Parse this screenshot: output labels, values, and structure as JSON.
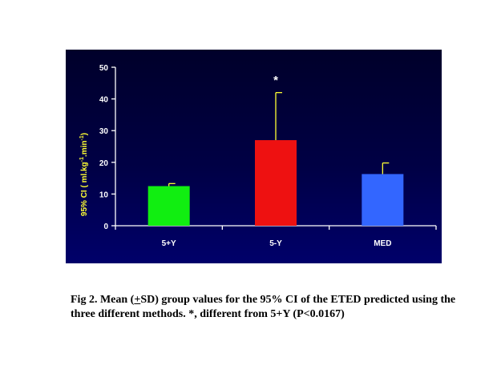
{
  "chart_data": {
    "type": "bar",
    "categories": [
      "5+Y",
      "5-Y",
      "MED"
    ],
    "values": [
      12.5,
      27,
      16.3
    ],
    "errors": [
      0.8,
      15,
      3.5
    ],
    "bar_colors": [
      "#11ee11",
      "#ee1111",
      "#3366ff"
    ],
    "background": "#000033",
    "ylabel_parts": [
      "95% CI ( ml.kg",
      "-1",
      ".min",
      "-1",
      ")"
    ],
    "ylim": [
      0,
      50
    ],
    "yticks": [
      "0",
      "10",
      "20",
      "30",
      "40",
      "50"
    ],
    "annotation": {
      "text": "*",
      "category": "5-Y",
      "y": 48
    },
    "grid": false
  },
  "caption": {
    "pre": "Fig 2. Mean (",
    "pm_sign": "+",
    "post": "SD) group values for the 95% CI of the ETED predicted using the three different methods. *, different from 5+Y (P<0.0167)"
  }
}
